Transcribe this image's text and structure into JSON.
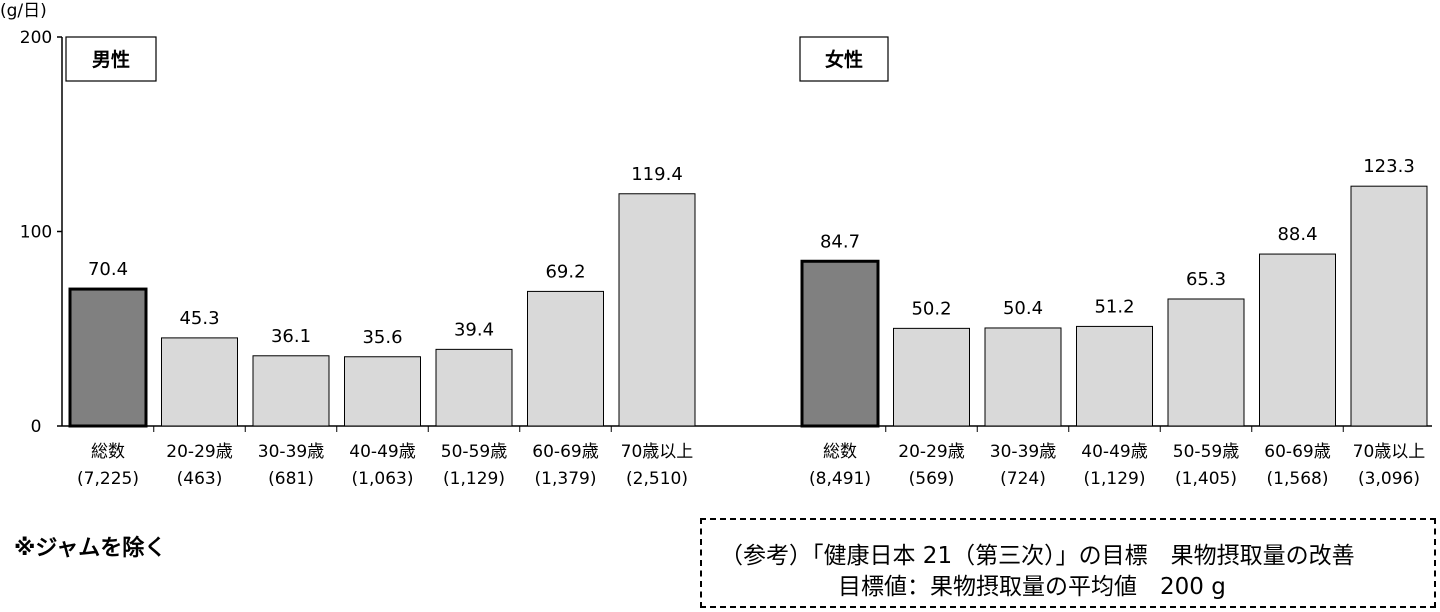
{
  "chart_data": {
    "type": "bar",
    "unit_label": "(g/日)",
    "yticks": [
      "200",
      "100",
      "0"
    ],
    "ylim": [
      0,
      200
    ],
    "grid": false,
    "groups": [
      {
        "label": "男性",
        "categories": [
          "総数",
          "20-29歳",
          "30-39歳",
          "40-49歳",
          "50-59歳",
          "60-69歳",
          "70歳以上"
        ],
        "counts": [
          "(7,225)",
          "(463)",
          "(681)",
          "(1,063)",
          "(1,129)",
          "(1,379)",
          "(2,510)"
        ],
        "values": [
          70.4,
          45.3,
          36.1,
          35.6,
          39.4,
          69.2,
          119.4
        ],
        "value_labels": [
          "70.4",
          "45.3",
          "36.1",
          "35.6",
          "39.4",
          "69.2",
          "119.4"
        ]
      },
      {
        "label": "女性",
        "categories": [
          "総数",
          "20-29歳",
          "30-39歳",
          "40-49歳",
          "50-59歳",
          "60-69歳",
          "70歳以上"
        ],
        "counts": [
          "(8,491)",
          "(569)",
          "(724)",
          "(1,129)",
          "(1,405)",
          "(1,568)",
          "(3,096)"
        ],
        "values": [
          84.7,
          50.2,
          50.4,
          51.2,
          65.3,
          88.4,
          123.3
        ],
        "value_labels": [
          "84.7",
          "50.2",
          "50.4",
          "51.2",
          "65.3",
          "88.4",
          "123.3"
        ]
      }
    ],
    "colors": {
      "total_bar": "#808080",
      "age_bar": "#d9d9d9",
      "outline": "#000000"
    }
  },
  "note": "※ジャムを除く",
  "reference": {
    "line1": "（参考）「健康日本 21（第三次）」の目標　果物摂取量の改善",
    "line2": "目標値：果物摂取量の平均値　200 g"
  }
}
